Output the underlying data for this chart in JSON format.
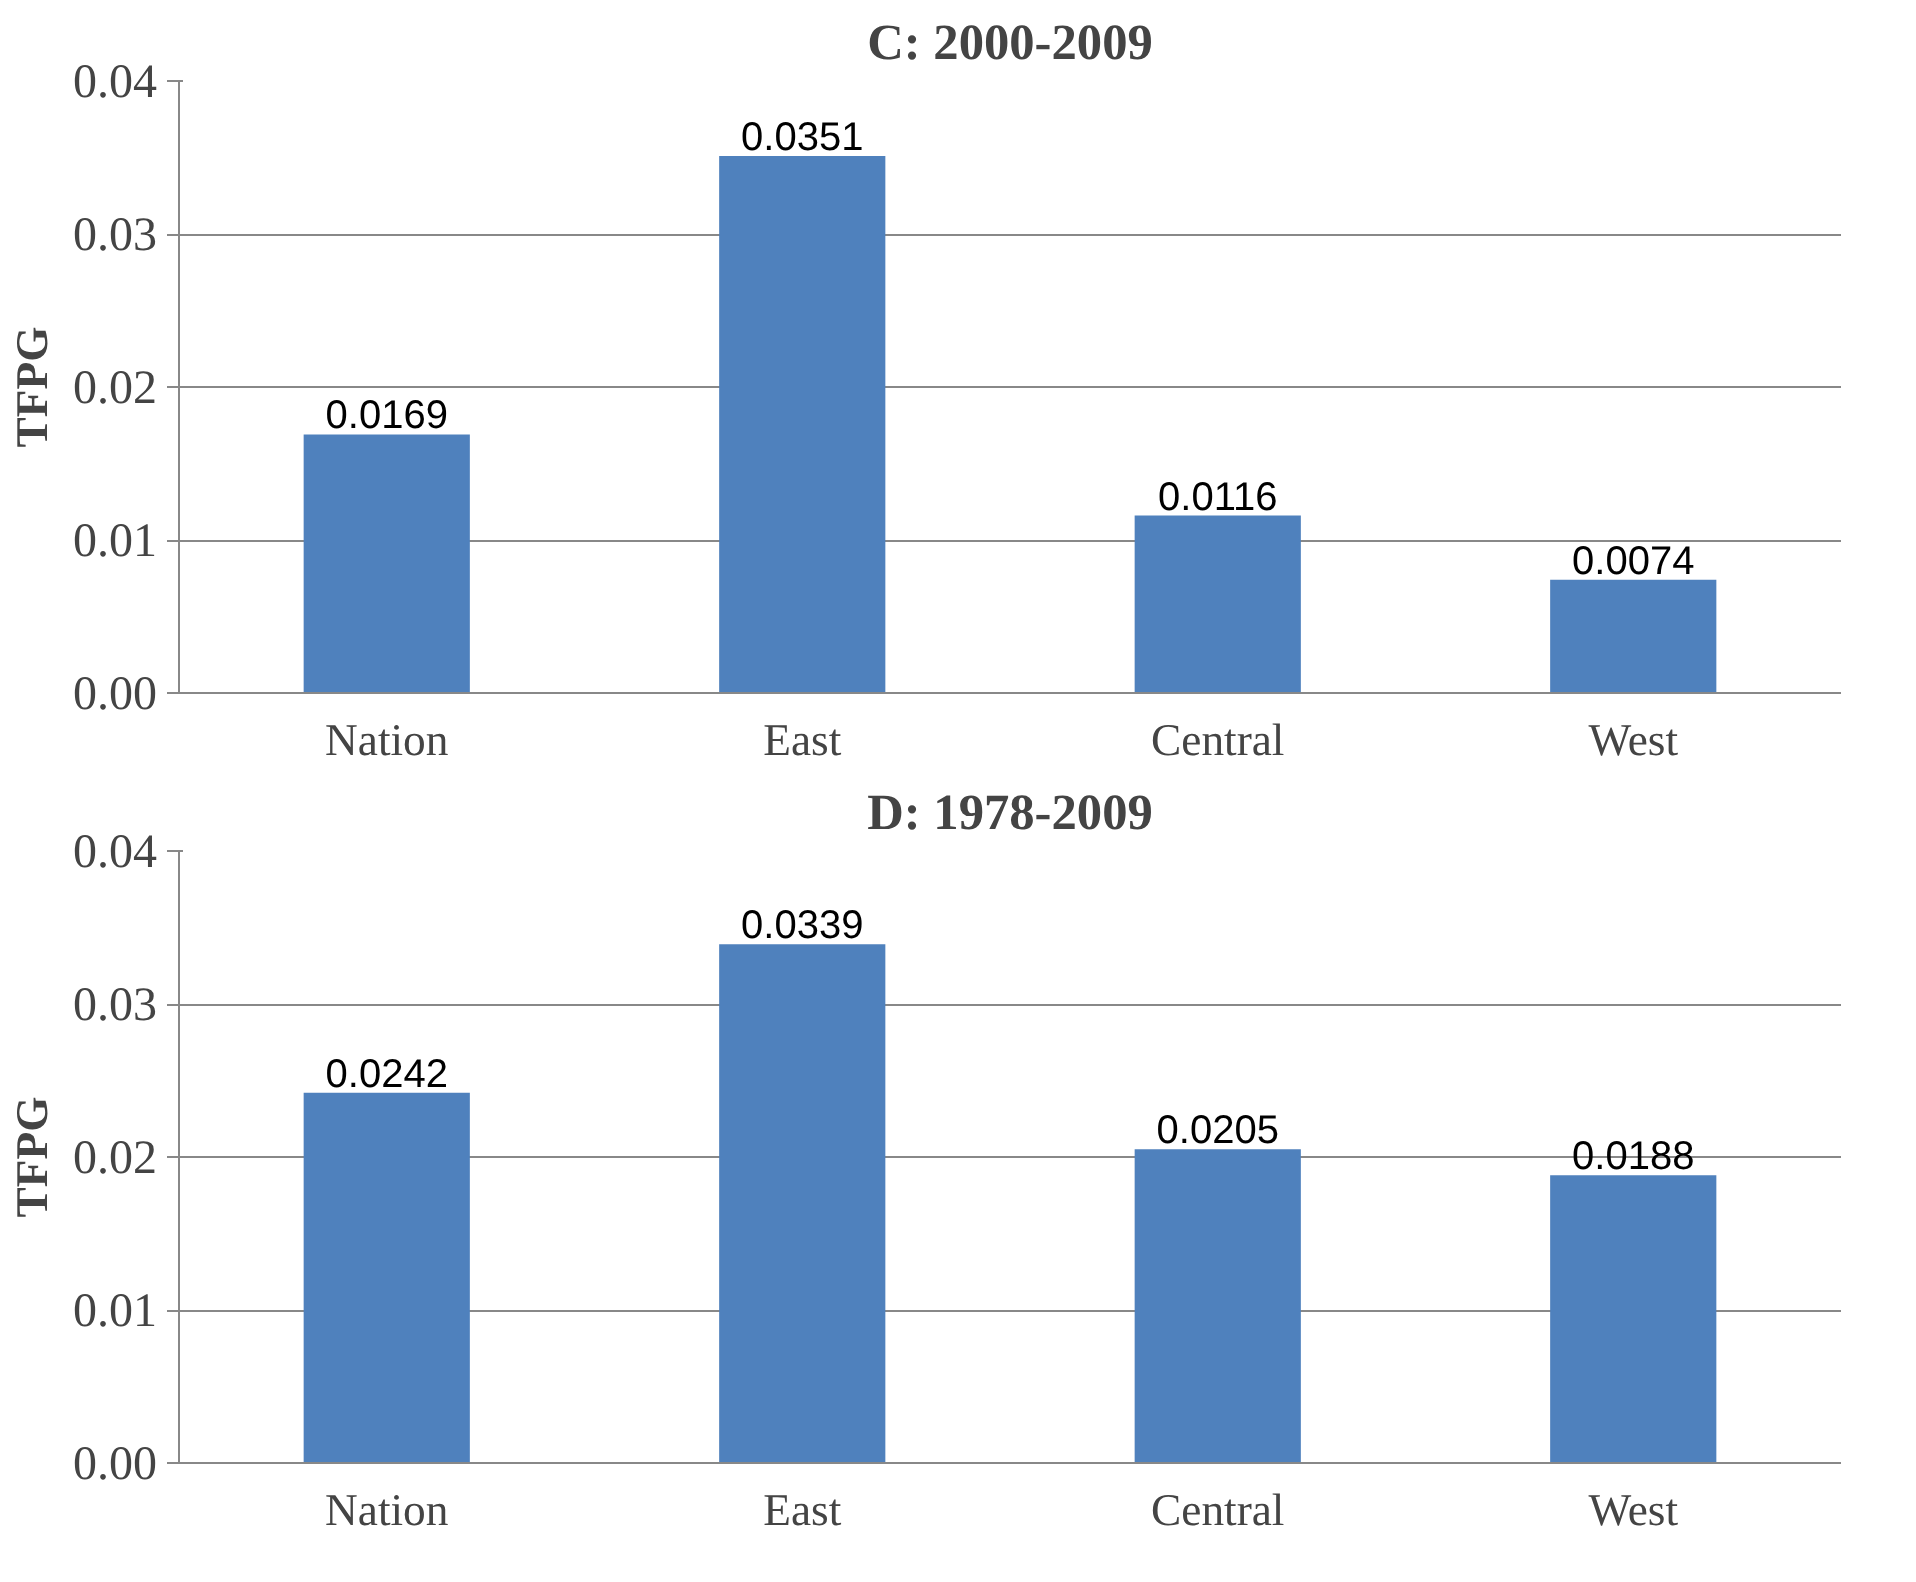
{
  "chart_data": [
    {
      "type": "bar",
      "title": "C: 2000-2009",
      "ylabel": "TFPG",
      "categories": [
        "Nation",
        "East",
        "Central",
        "West"
      ],
      "values": [
        0.0169,
        0.0351,
        0.0116,
        0.0074
      ],
      "color": "#4f81bd",
      "ylim": [
        0,
        0.04
      ],
      "yticks": [
        {
          "value": 0,
          "label": "0.00"
        },
        0.01,
        0.02,
        0.03,
        0.04
      ],
      "grid": "y",
      "data_labels": true
    },
    {
      "type": "bar",
      "title": "D: 1978-2009",
      "ylabel": "TFPG",
      "categories": [
        "Nation",
        "East",
        "Central",
        "West"
      ],
      "values": [
        0.0242,
        0.0339,
        0.0205,
        0.0188
      ],
      "color": "#4f81bd",
      "ylim": [
        0,
        0.04
      ],
      "yticks": [
        {
          "value": 0,
          "label": "0.00"
        },
        0.01,
        0.02,
        0.03,
        0.04
      ],
      "grid": "y",
      "data_labels": true
    }
  ]
}
